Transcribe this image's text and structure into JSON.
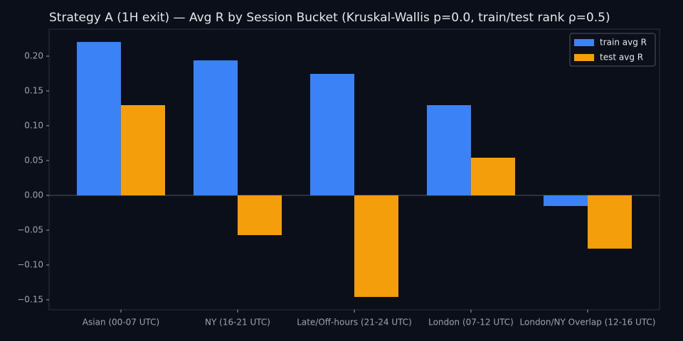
{
  "chart_data": {
    "type": "bar",
    "title": "Strategy A (1H exit) — Avg R by Session Bucket (Kruskal-Wallis p=0.0, train/test rank ρ=0.5)",
    "categories": [
      "Asian (00-07 UTC)",
      "NY (16-21 UTC)",
      "Late/Off-hours (21-24 UTC)",
      "London (07-12 UTC)",
      "London/NY Overlap (12-16 UTC)"
    ],
    "series": [
      {
        "name": "train avg R",
        "color": "#3b82f6",
        "values": [
          0.2204,
          0.1939,
          0.1745,
          0.1296,
          -0.0153
        ]
      },
      {
        "name": "test avg R",
        "color": "#f59e0b",
        "values": [
          0.1296,
          -0.0571,
          -0.1459,
          0.0541,
          -0.0765
        ]
      }
    ],
    "ylim": [
      -0.1643,
      0.2388
    ],
    "yticks": [
      {
        "value": -0.15,
        "label": "−0.15"
      },
      {
        "value": -0.1,
        "label": "−0.10"
      },
      {
        "value": -0.05,
        "label": "−0.05"
      },
      {
        "value": 0,
        "label": "0.00"
      },
      {
        "value": 0.05,
        "label": "0.05"
      },
      {
        "value": 0.1,
        "label": "0.10"
      },
      {
        "value": 0.15,
        "label": "0.15"
      },
      {
        "value": 0.2,
        "label": "0.20"
      }
    ],
    "legend": "upper right"
  }
}
